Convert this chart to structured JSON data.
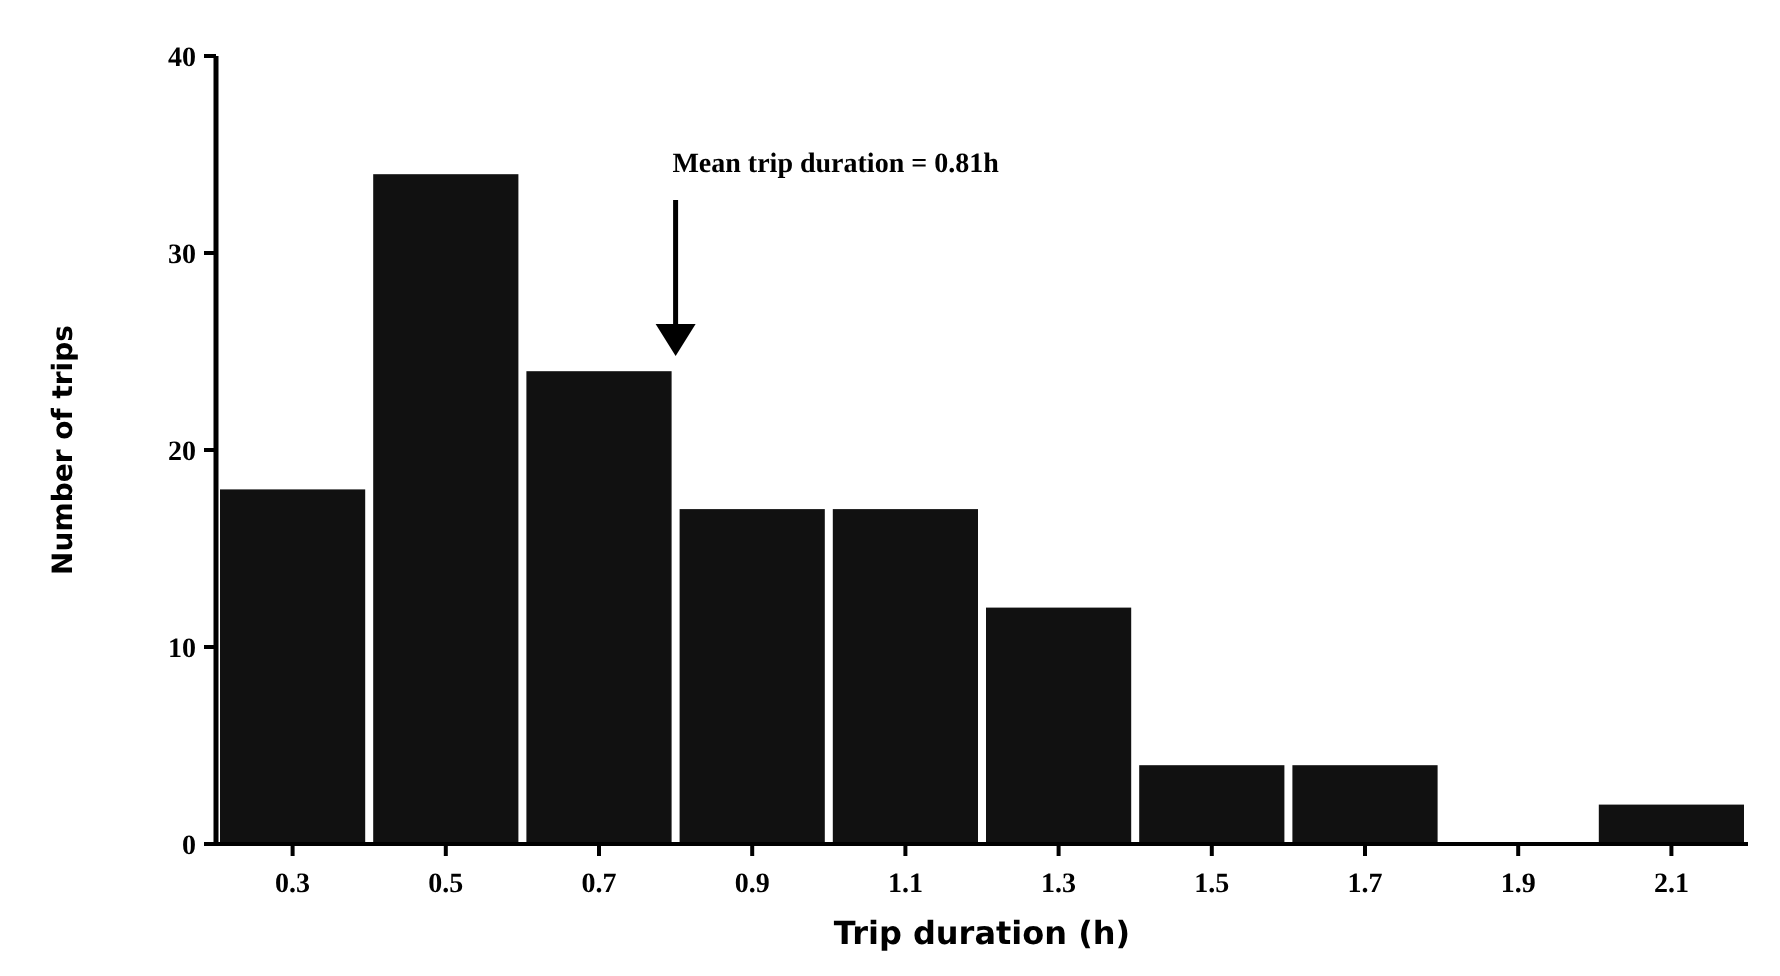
{
  "chart_data": {
    "type": "histogram",
    "xlabel": "Trip duration (h)",
    "ylabel": "Number of trips",
    "bins": [
      0.2,
      0.4,
      0.6,
      0.8,
      1.0,
      1.2,
      1.4,
      1.6,
      1.8,
      2.0,
      2.2
    ],
    "values": [
      18,
      34,
      24,
      17,
      17,
      12,
      4,
      4,
      0,
      2
    ],
    "color": "#111111",
    "xlim": [
      0.2,
      2.2
    ],
    "xticks": [
      0.3,
      0.5,
      0.7,
      0.9,
      1.1,
      1.3,
      1.5,
      1.7,
      1.9,
      2.1
    ],
    "ylim": [
      0,
      40
    ],
    "yticks": [
      0,
      10,
      20,
      30,
      40
    ],
    "annotations": [
      "Mean trip duration = 0.81h"
    ]
  }
}
